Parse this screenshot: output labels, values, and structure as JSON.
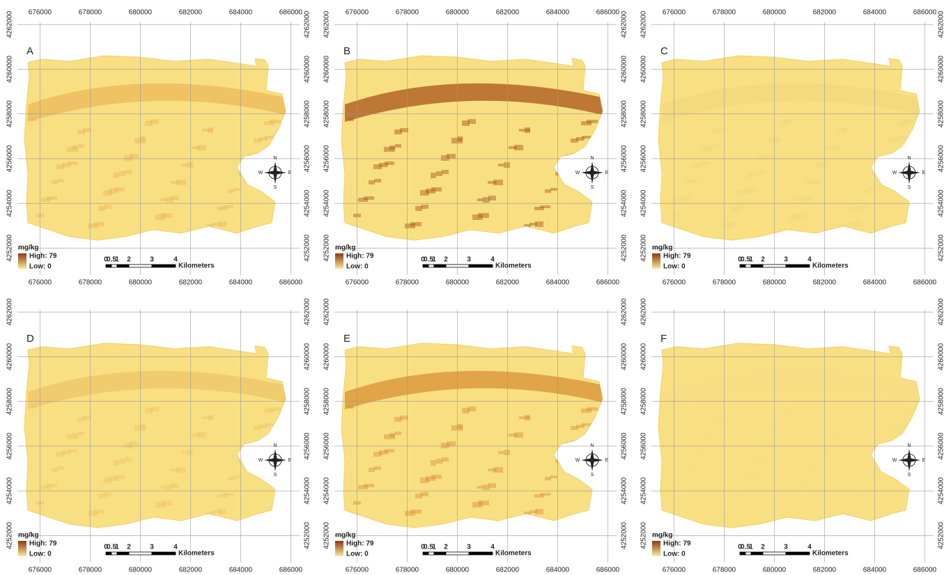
{
  "panels": [
    {
      "label": "A",
      "band_color": "#e7a94a",
      "band_opacity": 0.55
    },
    {
      "label": "B",
      "band_color": "#a8561a",
      "band_opacity": 0.75
    },
    {
      "label": "C",
      "band_color": "#edd07a",
      "band_opacity": 0.35
    },
    {
      "label": "D",
      "band_color": "#e9b556",
      "band_opacity": 0.45
    },
    {
      "label": "E",
      "band_color": "#d98a30",
      "band_opacity": 0.7
    },
    {
      "label": "F",
      "band_color": "#f3de8a",
      "band_opacity": 0.2
    }
  ],
  "xticks": [
    676000,
    678000,
    680000,
    682000,
    684000,
    686000
  ],
  "yticks": [
    4252000,
    4254000,
    4256000,
    4258000,
    4260000,
    4262000
  ],
  "xlim": [
    675100,
    686350
  ],
  "ylim": [
    4250800,
    4262100
  ],
  "legend": {
    "unit": "mg/kg",
    "high": "High: 79",
    "low": "Low: 0",
    "high_color": "#8b3a0f",
    "low_color": "#fbe8a0"
  },
  "scale_bar": {
    "labels": [
      "0",
      "0.5",
      "1",
      "2",
      "3",
      "4"
    ],
    "unit": "Kilometers"
  },
  "compass": {
    "north": "N",
    "east": "E",
    "south": "S",
    "west": "W"
  }
}
